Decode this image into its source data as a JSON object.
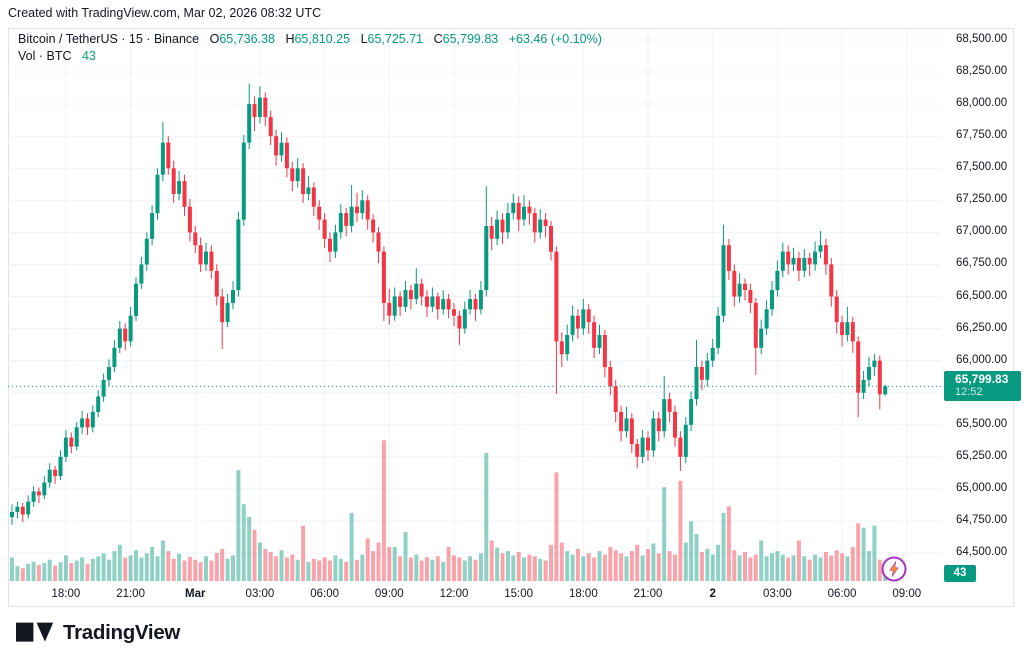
{
  "attribution": "Created with TradingView.com, Mar 02, 2026 08:32 UTC",
  "legend": {
    "title": "Bitcoin / TetherUS · 15 · Binance",
    "o_label": "O",
    "o_value": "65,736.38",
    "h_label": "H",
    "h_value": "65,810.25",
    "l_label": "L",
    "l_value": "65,725.71",
    "c_label": "C",
    "c_value": "65,799.83",
    "change": "+63.46 (+0.10%)",
    "vol_label": "Vol · BTC",
    "vol_value": "43"
  },
  "price_axis": {
    "ticks": [
      {
        "label": "68,500.00",
        "value": 68500
      },
      {
        "label": "68,250.00",
        "value": 68250
      },
      {
        "label": "68,000.00",
        "value": 68000
      },
      {
        "label": "67,750.00",
        "value": 67750
      },
      {
        "label": "67,500.00",
        "value": 67500
      },
      {
        "label": "67,250.00",
        "value": 67250
      },
      {
        "label": "67,000.00",
        "value": 67000
      },
      {
        "label": "66,750.00",
        "value": 66750
      },
      {
        "label": "66,500.00",
        "value": 66500
      },
      {
        "label": "66,250.00",
        "value": 66250
      },
      {
        "label": "66,000.00",
        "value": 66000
      },
      {
        "label": "65,750.00",
        "value": 65750
      },
      {
        "label": "65,500.00",
        "value": 65500
      },
      {
        "label": "65,250.00",
        "value": 65250
      },
      {
        "label": "65,000.00",
        "value": 65000
      },
      {
        "label": "64,750.00",
        "value": 64750
      },
      {
        "label": "64,500.00",
        "value": 64500
      }
    ],
    "last_price": "65,799.83",
    "countdown": "12:52",
    "volume_badge": "43"
  },
  "logo": {
    "text": "TradingView"
  },
  "colors": {
    "up": "#089981",
    "down": "#f23645",
    "vol_up": "rgba(8,153,129,0.45)",
    "vol_down": "rgba(242,54,69,0.45)",
    "grid": "#f0f3fa",
    "border": "#e0e3eb",
    "text": "#131722",
    "badge_bg": "#089981",
    "flash_ring": "#a835c2",
    "flash_bolt": "#f7931a"
  },
  "chart_data": {
    "type": "candlestick",
    "title": "Bitcoin / TetherUS",
    "interval": "15",
    "exchange": "Binance",
    "volume_unit": "BTC",
    "last": {
      "open": 65736.38,
      "high": 65810.25,
      "low": 65725.71,
      "close": 65799.83,
      "volume": 43
    },
    "y_range_labeled": [
      64500,
      68500
    ],
    "grid": true,
    "legend_position": "top-left",
    "time_labels": [
      {
        "text": "18:00",
        "index": 10,
        "bold": false
      },
      {
        "text": "21:00",
        "index": 22,
        "bold": false
      },
      {
        "text": "Mar",
        "index": 34,
        "bold": true
      },
      {
        "text": "03:00",
        "index": 46,
        "bold": false
      },
      {
        "text": "06:00",
        "index": 58,
        "bold": false
      },
      {
        "text": "09:00",
        "index": 70,
        "bold": false
      },
      {
        "text": "12:00",
        "index": 82,
        "bold": false
      },
      {
        "text": "15:00",
        "index": 94,
        "bold": false
      },
      {
        "text": "18:00",
        "index": 106,
        "bold": false
      },
      {
        "text": "21:00",
        "index": 118,
        "bold": false
      },
      {
        "text": "2",
        "index": 130,
        "bold": true
      },
      {
        "text": "03:00",
        "index": 142,
        "bold": false
      },
      {
        "text": "06:00",
        "index": 154,
        "bold": false
      },
      {
        "text": "09:00",
        "index": 166,
        "bold": false
      }
    ],
    "candles": [
      [
        64780,
        64880,
        64720,
        64820,
        55
      ],
      [
        64820,
        64900,
        64770,
        64860,
        35
      ],
      [
        64860,
        64890,
        64740,
        64800,
        30
      ],
      [
        64800,
        64950,
        64770,
        64900,
        40
      ],
      [
        64900,
        65020,
        64860,
        64980,
        45
      ],
      [
        64980,
        65010,
        64890,
        64950,
        38
      ],
      [
        64950,
        65100,
        64920,
        65050,
        42
      ],
      [
        65050,
        65200,
        65010,
        65150,
        50
      ],
      [
        65150,
        65180,
        65040,
        65100,
        36
      ],
      [
        65100,
        65300,
        65070,
        65250,
        44
      ],
      [
        65250,
        65460,
        65210,
        65400,
        60
      ],
      [
        65400,
        65440,
        65280,
        65330,
        42
      ],
      [
        65330,
        65520,
        65300,
        65480,
        48
      ],
      [
        65480,
        65610,
        65430,
        65550,
        55
      ],
      [
        65550,
        65590,
        65420,
        65480,
        40
      ],
      [
        65480,
        65650,
        65440,
        65600,
        52
      ],
      [
        65600,
        65770,
        65560,
        65720,
        58
      ],
      [
        65720,
        65900,
        65680,
        65850,
        65
      ],
      [
        65850,
        66010,
        65800,
        65950,
        50
      ],
      [
        65950,
        66160,
        65910,
        66100,
        70
      ],
      [
        66100,
        66310,
        66060,
        66250,
        85
      ],
      [
        66250,
        66290,
        66080,
        66150,
        55
      ],
      [
        66150,
        66420,
        66110,
        66350,
        60
      ],
      [
        66350,
        66650,
        66310,
        66600,
        72
      ],
      [
        66600,
        66810,
        66560,
        66750,
        55
      ],
      [
        66750,
        67000,
        66700,
        66950,
        65
      ],
      [
        66950,
        67210,
        66900,
        67150,
        80
      ],
      [
        67150,
        67500,
        67100,
        67450,
        58
      ],
      [
        67450,
        67860,
        67400,
        67700,
        95
      ],
      [
        67700,
        67750,
        67450,
        67500,
        70
      ],
      [
        67500,
        67560,
        67230,
        67300,
        52
      ],
      [
        67300,
        67480,
        67250,
        67400,
        64
      ],
      [
        67400,
        67450,
        67130,
        67200,
        48
      ],
      [
        67200,
        67260,
        66930,
        67000,
        56
      ],
      [
        67000,
        67050,
        66840,
        66900,
        50
      ],
      [
        66900,
        66960,
        66690,
        66750,
        44
      ],
      [
        66750,
        66920,
        66700,
        66850,
        58
      ],
      [
        66850,
        66900,
        66640,
        66700,
        48
      ],
      [
        66700,
        66750,
        66430,
        66500,
        66
      ],
      [
        66500,
        66560,
        66090,
        66300,
        75
      ],
      [
        66300,
        66520,
        66260,
        66450,
        52
      ],
      [
        66450,
        66620,
        66400,
        66550,
        60
      ],
      [
        66550,
        67160,
        66500,
        67100,
        260
      ],
      [
        67100,
        67760,
        67050,
        67700,
        180
      ],
      [
        67700,
        68160,
        67650,
        68000,
        150
      ],
      [
        68000,
        68060,
        67790,
        67900,
        120
      ],
      [
        67900,
        68140,
        67850,
        68050,
        90
      ],
      [
        68050,
        68090,
        67830,
        67900,
        75
      ],
      [
        67900,
        67950,
        67680,
        67750,
        68
      ],
      [
        67750,
        67800,
        67520,
        67600,
        58
      ],
      [
        67600,
        67780,
        67550,
        67700,
        72
      ],
      [
        67700,
        67740,
        67430,
        67500,
        55
      ],
      [
        67500,
        67550,
        67320,
        67400,
        62
      ],
      [
        67400,
        67580,
        67350,
        67500,
        50
      ],
      [
        67500,
        67540,
        67230,
        67300,
        130
      ],
      [
        67300,
        67440,
        67250,
        67350,
        45
      ],
      [
        67350,
        67390,
        67130,
        67200,
        52
      ],
      [
        67200,
        67250,
        67020,
        67100,
        48
      ],
      [
        67100,
        67150,
        66880,
        66950,
        55
      ],
      [
        66950,
        67000,
        66770,
        66850,
        48
      ],
      [
        66850,
        67060,
        66800,
        67000,
        60
      ],
      [
        67000,
        67220,
        66950,
        67150,
        52
      ],
      [
        67150,
        67190,
        66970,
        67050,
        45
      ],
      [
        67050,
        67370,
        67000,
        67200,
        160
      ],
      [
        67200,
        67310,
        67080,
        67150,
        50
      ],
      [
        67150,
        67330,
        67100,
        67250,
        62
      ],
      [
        67250,
        67290,
        67020,
        67100,
        100
      ],
      [
        67100,
        67140,
        66920,
        67000,
        70
      ],
      [
        67000,
        67040,
        66760,
        66850,
        90
      ],
      [
        66850,
        66890,
        66310,
        66450,
        330
      ],
      [
        66450,
        66560,
        66280,
        66350,
        80
      ],
      [
        66350,
        66570,
        66310,
        66500,
        80
      ],
      [
        66500,
        66540,
        66350,
        66420,
        58
      ],
      [
        66420,
        66620,
        66380,
        66550,
        115
      ],
      [
        66550,
        66590,
        66400,
        66480,
        55
      ],
      [
        66480,
        66720,
        66440,
        66600,
        62
      ],
      [
        66600,
        66640,
        66430,
        66500,
        48
      ],
      [
        66500,
        66550,
        66340,
        66420,
        56
      ],
      [
        66420,
        66570,
        66380,
        66500,
        50
      ],
      [
        66500,
        66530,
        66320,
        66400,
        58
      ],
      [
        66400,
        66550,
        66360,
        66480,
        45
      ],
      [
        66480,
        66520,
        66330,
        66400,
        80
      ],
      [
        66400,
        66450,
        66270,
        66350,
        60
      ],
      [
        66350,
        66390,
        66120,
        66250,
        55
      ],
      [
        66250,
        66460,
        66210,
        66400,
        48
      ],
      [
        66400,
        66550,
        66360,
        66480,
        58
      ],
      [
        66480,
        66520,
        66310,
        66400,
        50
      ],
      [
        66400,
        66620,
        66360,
        66550,
        65
      ],
      [
        66550,
        67360,
        66500,
        67050,
        300
      ],
      [
        67050,
        67120,
        66860,
        66950,
        95
      ],
      [
        66950,
        67170,
        66900,
        67100,
        78
      ],
      [
        67100,
        67150,
        66910,
        67000,
        65
      ],
      [
        67000,
        67230,
        66950,
        67150,
        70
      ],
      [
        67150,
        67300,
        67100,
        67230,
        60
      ],
      [
        67230,
        67280,
        67010,
        67100,
        68
      ],
      [
        67100,
        67290,
        67050,
        67200,
        55
      ],
      [
        67200,
        67250,
        67060,
        67150,
        62
      ],
      [
        67150,
        67190,
        66920,
        67000,
        58
      ],
      [
        67000,
        67180,
        66950,
        67100,
        52
      ],
      [
        67100,
        67150,
        66960,
        67050,
        48
      ],
      [
        67050,
        67090,
        66780,
        66850,
        85
      ],
      [
        66850,
        66890,
        65740,
        66150,
        255
      ],
      [
        66150,
        66220,
        65950,
        66050,
        90
      ],
      [
        66050,
        66280,
        66000,
        66200,
        70
      ],
      [
        66200,
        66430,
        66150,
        66350,
        62
      ],
      [
        66350,
        66400,
        66170,
        66250,
        75
      ],
      [
        66250,
        66480,
        66200,
        66400,
        58
      ],
      [
        66400,
        66440,
        66210,
        66300,
        65
      ],
      [
        66300,
        66350,
        66020,
        66100,
        55
      ],
      [
        66100,
        66280,
        66050,
        66200,
        70
      ],
      [
        66200,
        66240,
        65870,
        65950,
        62
      ],
      [
        65950,
        66000,
        65730,
        65800,
        80
      ],
      [
        65800,
        65850,
        65520,
        65600,
        72
      ],
      [
        65600,
        65650,
        65370,
        65450,
        65
      ],
      [
        65450,
        65640,
        65400,
        65550,
        58
      ],
      [
        65550,
        65590,
        65280,
        65350,
        70
      ],
      [
        65350,
        65390,
        65160,
        65250,
        85
      ],
      [
        65250,
        65460,
        65200,
        65400,
        60
      ],
      [
        65400,
        65450,
        65220,
        65300,
        75
      ],
      [
        65300,
        65610,
        65250,
        65550,
        88
      ],
      [
        65550,
        65600,
        65370,
        65450,
        65
      ],
      [
        65450,
        65880,
        65400,
        65700,
        220
      ],
      [
        65700,
        65750,
        65520,
        65600,
        70
      ],
      [
        65600,
        65650,
        65330,
        65400,
        62
      ],
      [
        65400,
        65450,
        65140,
        65250,
        235
      ],
      [
        65250,
        65560,
        65200,
        65500,
        90
      ],
      [
        65500,
        65760,
        65450,
        65700,
        140
      ],
      [
        65700,
        66160,
        65650,
        65950,
        110
      ],
      [
        65950,
        66000,
        65770,
        65850,
        68
      ],
      [
        65850,
        66060,
        65800,
        66000,
        75
      ],
      [
        66000,
        66170,
        65950,
        66100,
        62
      ],
      [
        66100,
        66420,
        66050,
        66350,
        85
      ],
      [
        66350,
        67060,
        66300,
        66900,
        160
      ],
      [
        66900,
        66950,
        66630,
        66700,
        175
      ],
      [
        66700,
        66750,
        66420,
        66500,
        72
      ],
      [
        66500,
        66680,
        66450,
        66600,
        60
      ],
      [
        66600,
        66640,
        66470,
        66550,
        68
      ],
      [
        66550,
        66600,
        66370,
        66450,
        55
      ],
      [
        66450,
        66490,
        65890,
        66100,
        62
      ],
      [
        66100,
        66320,
        66050,
        66250,
        95
      ],
      [
        66250,
        66470,
        66200,
        66400,
        58
      ],
      [
        66400,
        66620,
        66350,
        66550,
        65
      ],
      [
        66550,
        66780,
        66500,
        66700,
        70
      ],
      [
        66700,
        66920,
        66650,
        66850,
        62
      ],
      [
        66850,
        66900,
        66670,
        66750,
        55
      ],
      [
        66750,
        66880,
        66700,
        66800,
        60
      ],
      [
        66800,
        66850,
        66620,
        66700,
        95
      ],
      [
        66700,
        66870,
        66650,
        66800,
        58
      ],
      [
        66800,
        66840,
        66660,
        66750,
        50
      ],
      [
        66750,
        66930,
        66700,
        66850,
        62
      ],
      [
        66850,
        67010,
        66800,
        66900,
        55
      ],
      [
        66900,
        66950,
        66670,
        66750,
        68
      ],
      [
        66750,
        66800,
        66420,
        66500,
        60
      ],
      [
        66500,
        66550,
        66210,
        66300,
        72
      ],
      [
        66300,
        66350,
        66110,
        66200,
        65
      ],
      [
        66200,
        66420,
        66150,
        66300,
        58
      ],
      [
        66300,
        66340,
        66060,
        66150,
        80
      ],
      [
        66150,
        66190,
        65560,
        65750,
        135
      ],
      [
        65750,
        65920,
        65700,
        65850,
        125
      ],
      [
        65850,
        66030,
        65800,
        65950,
        70
      ],
      [
        65950,
        66050,
        65880,
        66000,
        130
      ],
      [
        66000,
        66040,
        65620,
        65736.38,
        50
      ],
      [
        65736.38,
        65810.25,
        65725.71,
        65799.83,
        43
      ]
    ]
  }
}
